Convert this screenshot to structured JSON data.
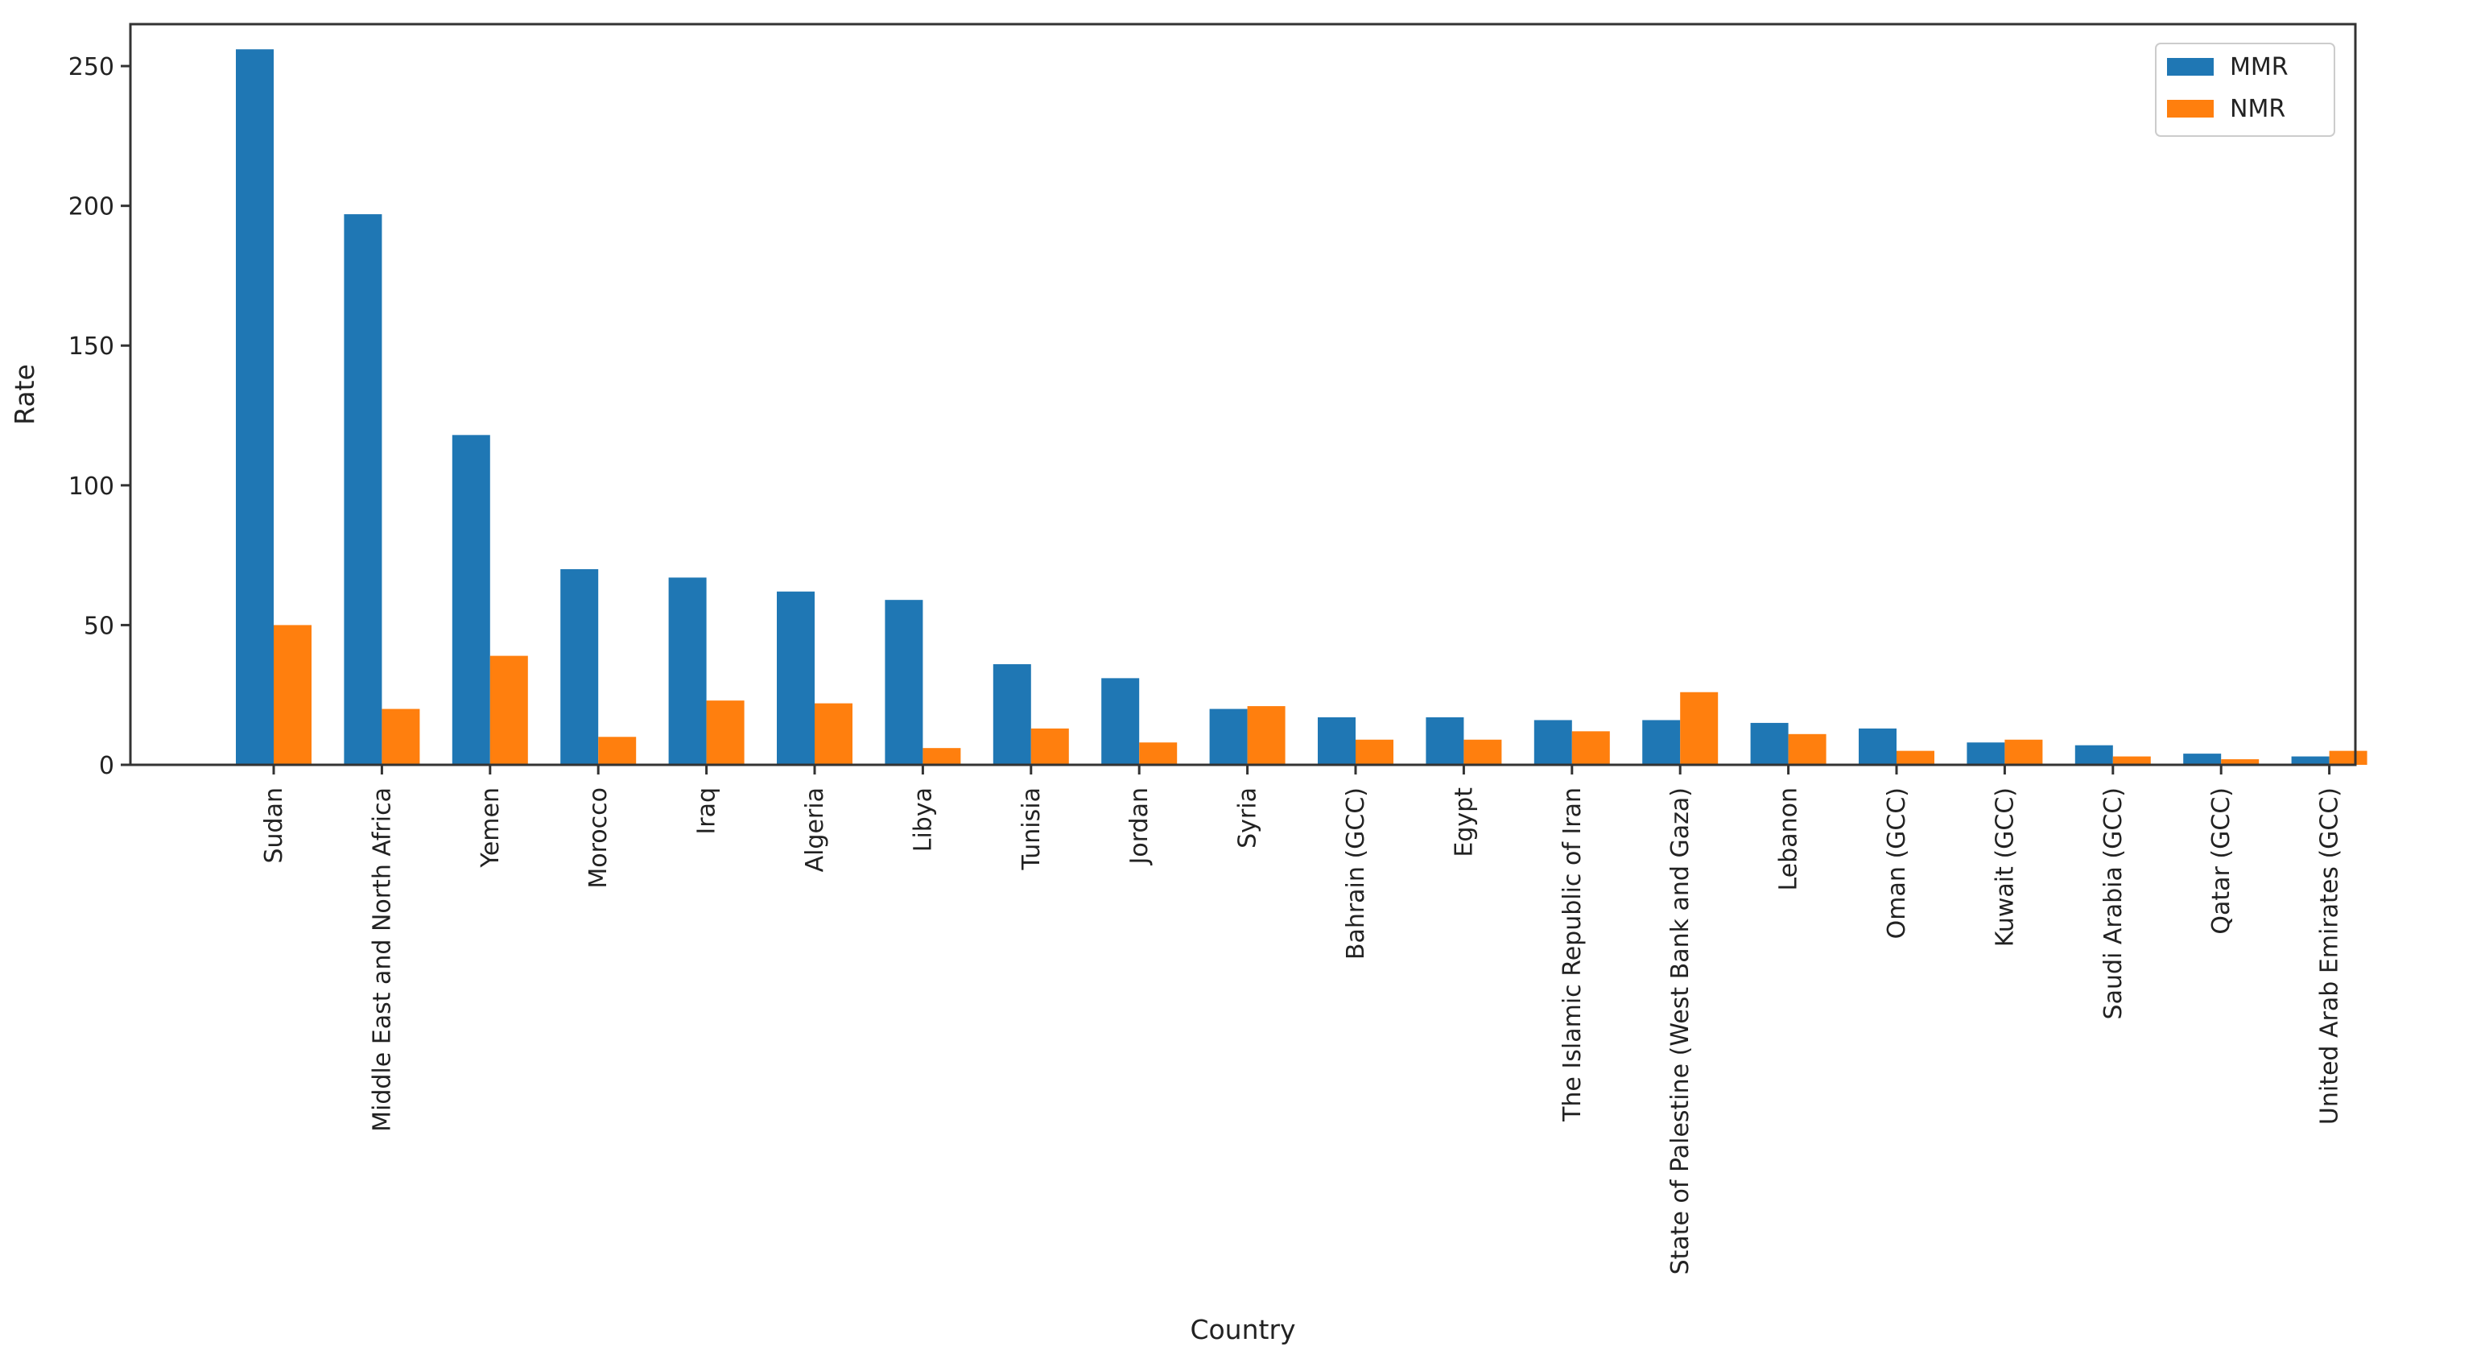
{
  "chart_data": {
    "type": "bar",
    "title": "",
    "xlabel": "Country",
    "ylabel": "Rate",
    "ylim": [
      0,
      265
    ],
    "yticks": [
      0,
      50,
      100,
      150,
      200,
      250
    ],
    "grid": false,
    "legend_position": "top-right",
    "categories": [
      "Sudan",
      "Middle East and North Africa",
      "Yemen",
      "Morocco",
      "Iraq",
      "Algeria",
      "Libya",
      "Tunisia",
      "Jordan",
      "Syria",
      "Bahrain (GCC)",
      "Egypt",
      "The Islamic Republic of Iran",
      "State of Palestine (West Bank and Gaza)",
      "Lebanon",
      "Oman (GCC)",
      "Kuwait (GCC)",
      "Saudi Arabia (GCC)",
      "Qatar (GCC)",
      "United Arab Emirates (GCC)"
    ],
    "series": [
      {
        "name": "MMR",
        "color": "#1f77b4",
        "values": [
          256,
          197,
          118,
          70,
          67,
          62,
          59,
          36,
          31,
          20,
          17,
          17,
          16,
          16,
          15,
          13,
          8,
          7,
          4,
          3
        ]
      },
      {
        "name": "NMR",
        "color": "#ff7f0e",
        "values": [
          50,
          20,
          39,
          10,
          23,
          22,
          6,
          13,
          8,
          21,
          9,
          9,
          12,
          26,
          11,
          5,
          9,
          3,
          2,
          5
        ]
      }
    ]
  }
}
